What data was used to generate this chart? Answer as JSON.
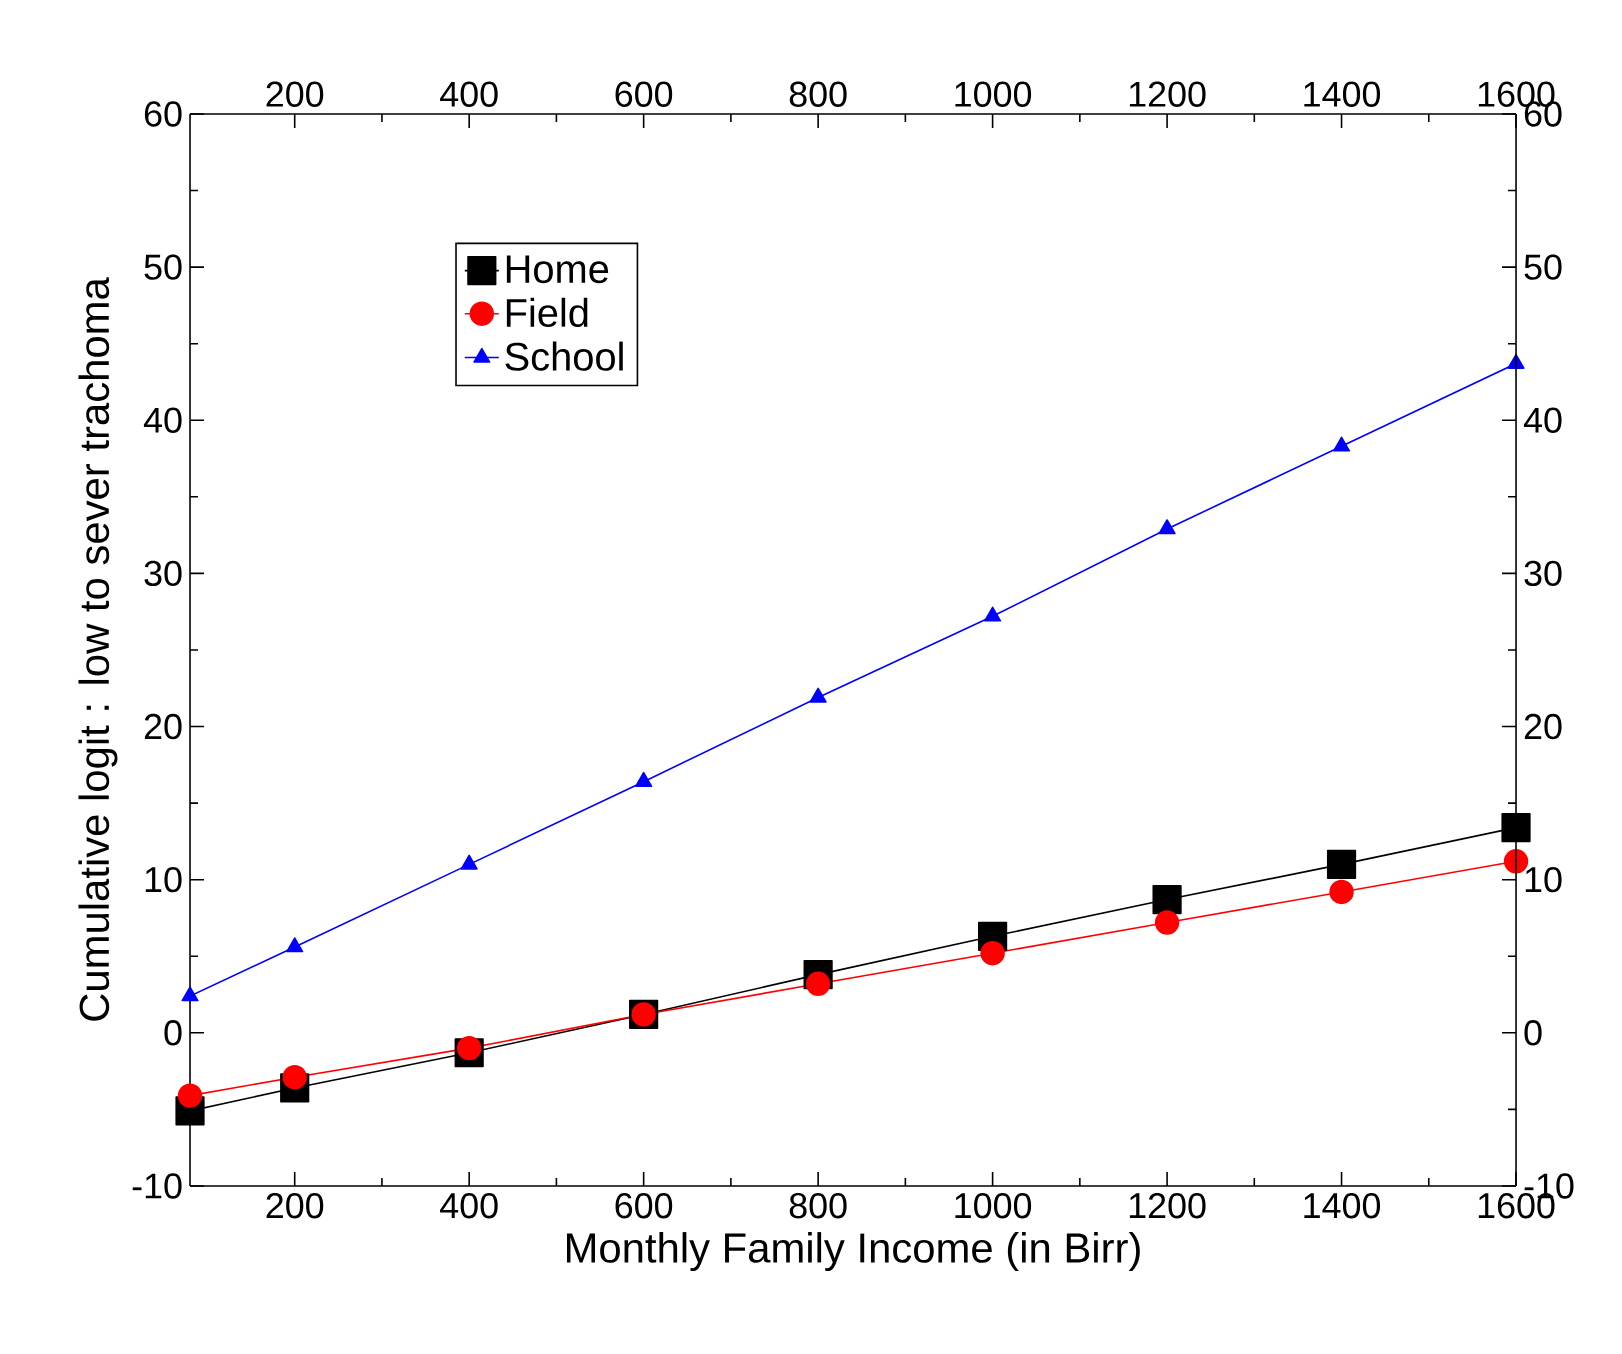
{
  "chart_data": {
    "type": "line",
    "xlabel": "Monthly Family Income (in Birr)",
    "ylabel": "Cumulative logit : low to sever trachoma",
    "x": [
      80,
      200,
      400,
      600,
      800,
      1000,
      1200,
      1400,
      1600
    ],
    "series": [
      {
        "name": "Home",
        "color": "#000000",
        "marker": "square",
        "values": [
          -5.1,
          -3.6,
          -1.3,
          1.2,
          3.8,
          6.3,
          8.7,
          11.0,
          13.4
        ]
      },
      {
        "name": "Field",
        "color": "#ff0000",
        "marker": "circle",
        "values": [
          -4.1,
          -2.9,
          -1.0,
          1.2,
          3.2,
          5.2,
          7.2,
          9.2,
          11.2
        ]
      },
      {
        "name": "School",
        "color": "#0000ff",
        "marker": "triangle",
        "values": [
          2.4,
          5.6,
          11.0,
          16.4,
          21.9,
          27.2,
          32.9,
          38.3,
          43.7
        ]
      }
    ],
    "xlim": [
      80,
      1600
    ],
    "xticks": [
      200,
      400,
      600,
      800,
      1000,
      1200,
      1400,
      1600
    ],
    "x2lim": [
      80,
      1600
    ],
    "x2ticks": [
      200,
      400,
      600,
      800,
      1000,
      1200,
      1400,
      1600
    ],
    "ylim": [
      -10,
      60
    ],
    "yticks": [
      -10,
      0,
      10,
      20,
      30,
      40,
      50,
      60
    ],
    "y2lim": [
      -10,
      60
    ],
    "y2ticks": [
      -10,
      0,
      10,
      20,
      30,
      40,
      50,
      60
    ],
    "legend": "top left",
    "grid": false,
    "line_style": "solid"
  }
}
